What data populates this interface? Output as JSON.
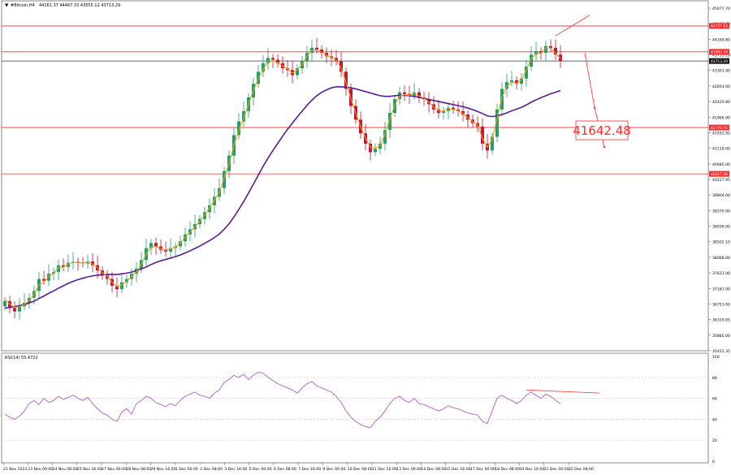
{
  "header": {
    "symbol_label": "#Bitcoin,H4",
    "ohlc_text": "44161.37 44467.33 43555.12 43713.29"
  },
  "rsi_panel": {
    "label": "RSI(14) 55.4722",
    "axis_labels": [
      "100",
      "80",
      "60",
      "40",
      "20",
      "0"
    ]
  },
  "annotation": {
    "target_label": "41642.48",
    "color": "#ff2a2a"
  },
  "colors": {
    "bull": "#22a06b",
    "bear": "#c3173a",
    "fast_ma": "#f39c12",
    "slow_ma": "#5b1a8e",
    "rsi": "#b05bc8",
    "level": "#ff2a2a"
  },
  "chart_data": {
    "type": "candlestick",
    "price_axis_labels": [
      "45077.70",
      "44623.70",
      "44169.80",
      "43713.29",
      "43301.90",
      "42854.00",
      "42420.80",
      "41966.90",
      "41552.95",
      "41119.00",
      "40685.00",
      "40227.95",
      "39804.00",
      "39370.00",
      "38936.00",
      "38502.10",
      "38068.00",
      "37621.00",
      "37187.00",
      "36753.00",
      "36319.05",
      "35885.00",
      "35451.35"
    ],
    "time_axis_labels": [
      "21 Nov 2023",
      "23 Nov 00:00",
      "24 Nov 08:00",
      "25 Nov 16:00",
      "27 Nov 00:00",
      "28 Nov 08:00",
      "29 Nov 16:00",
      "1 Dec 00:00",
      "2 Dec 08:00",
      "3 Dec 16:00",
      "5 Dec 00:00",
      "6 Dec 08:00",
      "7 Dec 16:00",
      "9 Dec 00:00",
      "10 Dec 08:00",
      "11 Dec 16:00",
      "13 Dec 00:00",
      "14 Dec 08:00",
      "15 Dec 16:00",
      "17 Dec 00:00",
      "18 Dec 08:00",
      "19 Dec 16:00",
      "21 Dec 00:00",
      "22 Dec 08:00"
    ],
    "horizontal_levels": [
      {
        "price": 44737.63,
        "label": "44737.63"
      },
      {
        "price": 43982.24,
        "label": "43982.24"
      },
      {
        "price": 43713.29,
        "label": "43713.29"
      },
      {
        "price": 41770.75,
        "label": "41770.75"
      },
      {
        "price": 40417.89,
        "label": "40417.89"
      }
    ],
    "closes": [
      36700,
      36500,
      36400,
      36550,
      36650,
      36800,
      37000,
      37350,
      37300,
      37500,
      37550,
      37750,
      37700,
      37820,
      37850,
      37830,
      37800,
      37860,
      37750,
      37600,
      37450,
      37350,
      37150,
      37050,
      37250,
      37350,
      37500,
      37650,
      37900,
      38250,
      38400,
      38300,
      38200,
      38150,
      38250,
      38300,
      38450,
      38650,
      38800,
      38950,
      39100,
      39300,
      39500,
      39750,
      40000,
      40500,
      40950,
      41550,
      41950,
      42250,
      42650,
      43050,
      43400,
      43650,
      43800,
      43750,
      43650,
      43500,
      43450,
      43300,
      43500,
      43700,
      43950,
      44100,
      44050,
      43950,
      43850,
      43800,
      43700,
      43400,
      42900,
      42400,
      42000,
      41600,
      41300,
      41050,
      41150,
      41300,
      41700,
      42200,
      42600,
      42800,
      42750,
      42700,
      42800,
      42650,
      42600,
      42450,
      42300,
      42200,
      42250,
      42350,
      42300,
      42250,
      42150,
      42000,
      41900,
      41800,
      41300,
      41100,
      41500,
      42300,
      42900,
      43100,
      43150,
      43050,
      43200,
      43550,
      43900,
      44000,
      43950,
      44150,
      44100,
      43900,
      43713.29
    ],
    "fast_ma": [
      36750,
      36620,
      36520,
      36540,
      36600,
      36720,
      36900,
      37180,
      37260,
      37420,
      37520,
      37680,
      37700,
      37780,
      37830,
      37830,
      37810,
      37840,
      37790,
      37680,
      37530,
      37420,
      37250,
      37120,
      37180,
      37280,
      37420,
      37560,
      37780,
      38080,
      38290,
      38300,
      38240,
      38190,
      38230,
      38280,
      38400,
      38570,
      38720,
      38870,
      39030,
      39220,
      39420,
      39650,
      39880,
      40300,
      40720,
      41250,
      41700,
      42050,
      42450,
      42850,
      43200,
      43480,
      43680,
      43720,
      43670,
      43560,
      43490,
      43360,
      43450,
      43620,
      43850,
      44030,
      44040,
      43970,
      43880,
      43820,
      43730,
      43500,
      43080,
      42620,
      42190,
      41800,
      41470,
      41190,
      41160,
      41250,
      41580,
      42020,
      42430,
      42690,
      42730,
      42710,
      42770,
      42690,
      42630,
      42510,
      42370,
      42260,
      42250,
      42320,
      42300,
      42260,
      42180,
      42050,
      41950,
      41850,
      41450,
      41200,
      41420,
      42040,
      42650,
      42960,
      43100,
      43070,
      43160,
      43450,
      43780,
      43930,
      43940,
      44090,
      44090,
      43950,
      43780
    ],
    "slow_ma": [
      36500,
      36520,
      36540,
      36570,
      36600,
      36650,
      36700,
      36780,
      36850,
      36930,
      37000,
      37080,
      37150,
      37220,
      37280,
      37330,
      37370,
      37410,
      37440,
      37460,
      37470,
      37480,
      37480,
      37480,
      37500,
      37520,
      37550,
      37590,
      37640,
      37700,
      37770,
      37830,
      37880,
      37920,
      37960,
      38000,
      38050,
      38110,
      38170,
      38240,
      38310,
      38390,
      38470,
      38560,
      38660,
      38800,
      38960,
      39160,
      39380,
      39610,
      39860,
      40120,
      40380,
      40640,
      40880,
      41100,
      41310,
      41520,
      41720,
      41900,
      42080,
      42250,
      42420,
      42570,
      42700,
      42800,
      42870,
      42930,
      42960,
      42960,
      42950,
      42930,
      42900,
      42860,
      42820,
      42780,
      42740,
      42700,
      42680,
      42680,
      42700,
      42710,
      42710,
      42700,
      42680,
      42650,
      42620,
      42590,
      42560,
      42530,
      42500,
      42470,
      42440,
      42410,
      42380,
      42340,
      42290,
      42240,
      42180,
      42110,
      42090,
      42110,
      42150,
      42200,
      42260,
      42310,
      42360,
      42430,
      42510,
      42580,
      42640,
      42700,
      42760,
      42800,
      42850
    ],
    "rsi": [
      45,
      42,
      40,
      43,
      48,
      55,
      58,
      54,
      60,
      56,
      58,
      62,
      59,
      61,
      63,
      60,
      58,
      61,
      55,
      50,
      46,
      44,
      40,
      38,
      47,
      50,
      45,
      55,
      58,
      62,
      60,
      56,
      54,
      52,
      55,
      53,
      58,
      62,
      64,
      66,
      63,
      62,
      60,
      65,
      68,
      75,
      78,
      82,
      80,
      83,
      78,
      82,
      85,
      84,
      80,
      77,
      74,
      72,
      70,
      68,
      65,
      70,
      74,
      76,
      72,
      70,
      68,
      66,
      62,
      56,
      48,
      42,
      38,
      35,
      33,
      32,
      38,
      42,
      48,
      55,
      60,
      62,
      58,
      56,
      60,
      55,
      54,
      52,
      50,
      48,
      50,
      53,
      51,
      50,
      48,
      46,
      45,
      44,
      38,
      36,
      48,
      60,
      63,
      60,
      58,
      55,
      58,
      63,
      66,
      63,
      60,
      64,
      62,
      58,
      55
    ],
    "trendline_price": {
      "x": [
        113,
        120
      ],
      "y": [
        44450,
        45050
      ]
    },
    "trendline_rsi": {
      "x": [
        107,
        122
      ],
      "y": [
        68,
        65
      ]
    },
    "projection": {
      "x": [
        119,
        121,
        123
      ],
      "y": [
        43950,
        42350,
        41200
      ]
    },
    "target_price": 41642.48,
    "price_range": [
      35300,
      45400
    ],
    "rsi_range": [
      0,
      100
    ]
  }
}
